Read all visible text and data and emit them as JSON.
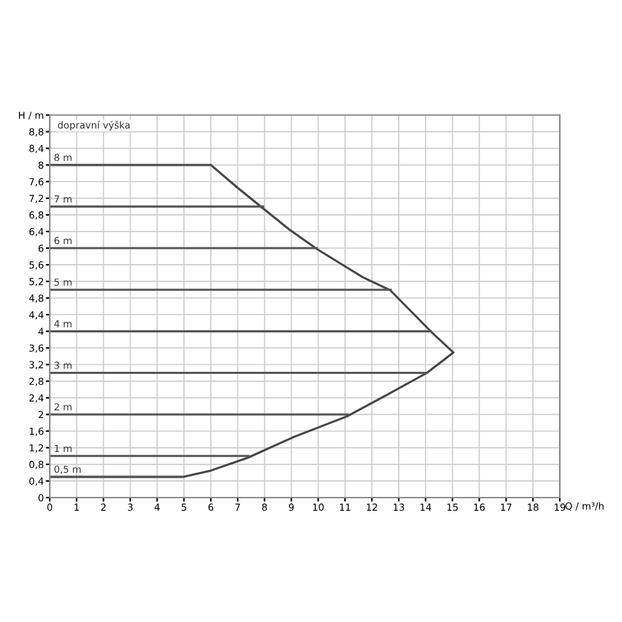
{
  "chart_data": {
    "type": "line",
    "series": [
      {
        "color": "#444444",
        "x": [
          0,
          6.0,
          7.0,
          7.98,
          8.92,
          9.95,
          11.66,
          12.68,
          14.22,
          15.04,
          14.05,
          12.5,
          11.06,
          9.1,
          7.38,
          6.0,
          4.97,
          0
        ],
        "values": [
          8,
          8,
          7.45,
          6.94,
          6.45,
          5.98,
          5.3,
          4.99,
          3.98,
          3.49,
          3.0,
          2.45,
          1.95,
          1.46,
          0.96,
          0.65,
          0.5,
          0.5
        ]
      },
      {
        "name": "7 m",
        "color": "#555555",
        "x": [
          0,
          7.95
        ],
        "values": [
          7,
          7
        ]
      },
      {
        "name": "6 m",
        "color": "#555555",
        "x": [
          0,
          9.95
        ],
        "values": [
          6,
          6
        ]
      },
      {
        "name": "5 m",
        "color": "#555555",
        "x": [
          0,
          12.7
        ],
        "values": [
          5,
          5
        ]
      },
      {
        "name": "4 m",
        "color": "#555555",
        "x": [
          0,
          14.2
        ],
        "values": [
          4,
          4
        ]
      },
      {
        "name": "3 m",
        "color": "#555555",
        "x": [
          0,
          14.05
        ],
        "values": [
          3,
          3
        ]
      },
      {
        "name": "2 m",
        "color": "#555555",
        "x": [
          0,
          11.1
        ],
        "values": [
          2,
          2
        ]
      },
      {
        "name": "1 m",
        "color": "#555555",
        "x": [
          0,
          7.4
        ],
        "values": [
          1,
          1
        ]
      },
      {
        "name": "8 m",
        "color": "#555555",
        "x": [
          0,
          6.0
        ],
        "values": [
          8,
          8
        ]
      },
      {
        "name": "0,5 m",
        "color": "#555555",
        "x": [
          0,
          4.97
        ],
        "values": [
          0.5,
          0.5
        ]
      }
    ],
    "annotations": [
      "dopravní výška"
    ],
    "xlabel": "Q / m³/h",
    "xlim": [
      0,
      19
    ],
    "ylim": [
      0,
      9.2
    ],
    "xticks": [
      0,
      1,
      2,
      3,
      4,
      5,
      6,
      7,
      8,
      9,
      10,
      11,
      12,
      13,
      14,
      15,
      16,
      17,
      18,
      19
    ],
    "yticks": [
      0,
      {
        "value": 0.4,
        "label": "0,4"
      },
      {
        "value": 0.8,
        "label": "0,8"
      },
      {
        "value": 1.2,
        "label": "1,2"
      },
      {
        "value": 1.6,
        "label": "1,6"
      },
      2,
      {
        "value": 2.4,
        "label": "2,4"
      },
      {
        "value": 2.8,
        "label": "2,8"
      },
      {
        "value": 3.2,
        "label": "3,2"
      },
      {
        "value": 3.6,
        "label": "3,6"
      },
      4,
      {
        "value": 4.4,
        "label": "4,4"
      },
      {
        "value": 4.8,
        "label": "4,8"
      },
      {
        "value": 5.2,
        "label": "5,2"
      },
      {
        "value": 5.6,
        "label": "5,6"
      },
      6,
      {
        "value": 6.4,
        "label": "6,4"
      },
      {
        "value": 6.8,
        "label": "6,8"
      },
      {
        "value": 7.2,
        "label": "7,2"
      },
      {
        "value": 7.6,
        "label": "7,6"
      },
      8,
      {
        "value": 8.4,
        "label": "8,4"
      },
      {
        "value": 8.8,
        "label": "8,8"
      },
      {
        "value": 9.2,
        "label": "H / m"
      }
    ],
    "grid": true,
    "legend": false
  }
}
